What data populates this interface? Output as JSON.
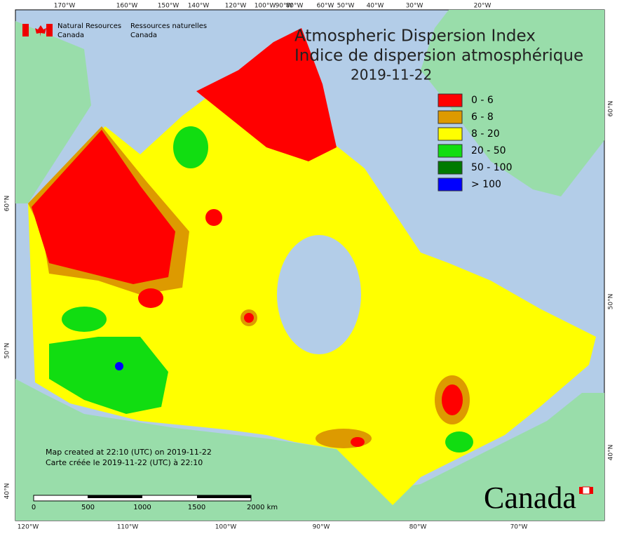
{
  "header": {
    "title_en": "Atmospheric Dispersion Index",
    "title_fr": "Indice de dispersion atmosphérique",
    "date": "2019-11-22"
  },
  "logo": {
    "en_line1": "Natural Resources",
    "en_line2": "Canada",
    "fr_line1": "Ressources naturelles",
    "fr_line2": "Canada"
  },
  "legend": [
    {
      "label": "0 - 6",
      "color": "#ff0000"
    },
    {
      "label": "6 - 8",
      "color": "#dd9a00"
    },
    {
      "label": "8 - 20",
      "color": "#ffff00"
    },
    {
      "label": "20 - 50",
      "color": "#11dd11"
    },
    {
      "label": "50 - 100",
      "color": "#007a00"
    },
    {
      "label": "> 100",
      "color": "#0000ff"
    }
  ],
  "graticule": {
    "top": [
      "170°W",
      "160°W",
      "150°W",
      "140°W",
      "120°W",
      "100°W",
      "90°W",
      "80°W",
      "60°W",
      "50°W",
      "40°W",
      "30°W",
      "20°W"
    ],
    "bottom": [
      "120°W",
      "110°W",
      "100°W",
      "90°W",
      "80°W",
      "70°W"
    ],
    "left": [
      "60°N",
      "50°N",
      "40°N"
    ],
    "right": [
      "60°N",
      "50°N",
      "40°N"
    ]
  },
  "scale_bar": [
    "0",
    "500",
    "1000",
    "1500",
    "2000 km"
  ],
  "credits": [
    "Map created at 22:10 (UTC) on 2019-11-22",
    "Carte créée le 2019-11-22 (UTC) à 22:10"
  ],
  "wordmark": "Canada"
}
